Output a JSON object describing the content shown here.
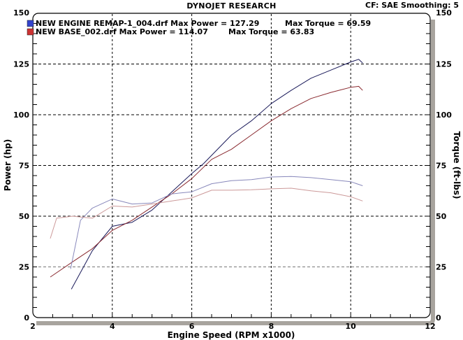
{
  "header": {
    "title": "DYNOJET RESEARCH",
    "cf_info": "CF: SAE  Smoothing: 5"
  },
  "legend": [
    {
      "label": "NEW ENGINE REMAP-1_004.drf Max Power = 127.29",
      "torque": "Max Torque = 69.59",
      "color": "#3344cc"
    },
    {
      "label": "NEW BASE_002.drf Max Power = 114.07",
      "torque": "Max Torque = 63.83",
      "color": "#cc3333"
    }
  ],
  "axes": {
    "x_title": "Engine Speed (RPM x1000)",
    "y_left_title": "Power (hp)",
    "y_right_title": "Torque (ft-lbs)",
    "x_ticks": [
      "2",
      "4",
      "6",
      "8",
      "10",
      "12"
    ],
    "y_ticks": [
      "0",
      "25",
      "50",
      "75",
      "100",
      "125",
      "150"
    ]
  },
  "colors": {
    "remap_power": "#1a1a5a",
    "base_power": "#8a2a30",
    "remap_torque": "#8888bb",
    "base_torque": "#cc9999",
    "frame_shadow": "#a8a49e"
  },
  "chart_data": {
    "type": "line",
    "title": "DYNOJET RESEARCH",
    "subtitle": "CF: SAE  Smoothing: 5",
    "xlabel": "Engine Speed (RPM x1000)",
    "ylabel": "Power (hp)",
    "ylabel_right": "Torque (ft-lbs)",
    "xlim": [
      2,
      12
    ],
    "ylim": [
      0,
      150
    ],
    "ylim_right": [
      0,
      150
    ],
    "grid": true,
    "legend_position": "top-left",
    "series": [
      {
        "name": "NEW ENGINE REMAP-1_004.drf Power",
        "axis": "left",
        "max": 127.29,
        "x": [
          2.97,
          3.5,
          4.0,
          4.5,
          5.0,
          5.5,
          6.0,
          6.3,
          6.8,
          7.0,
          7.5,
          8.0,
          8.5,
          9.0,
          9.5,
          10.0,
          10.2,
          10.3
        ],
        "y": [
          14,
          33,
          45,
          47,
          53,
          62,
          71,
          76,
          86,
          90,
          97,
          105.5,
          112,
          118,
          122,
          126,
          127.3,
          125.5
        ]
      },
      {
        "name": "NEW BASE_002.drf Power",
        "axis": "left",
        "max": 114.07,
        "x": [
          2.44,
          3.0,
          3.5,
          4.0,
          4.5,
          5.0,
          5.5,
          6.0,
          6.5,
          7.0,
          7.5,
          8.0,
          8.5,
          9.0,
          9.5,
          10.0,
          10.2,
          10.3
        ],
        "y": [
          20,
          27.5,
          34,
          43,
          48,
          54.5,
          61,
          68.5,
          78,
          83,
          90,
          97,
          103,
          108,
          111,
          113.5,
          114,
          112
        ]
      },
      {
        "name": "NEW ENGINE REMAP-1_004.drf Torque",
        "axis": "right",
        "max": 69.59,
        "x": [
          2.95,
          3.2,
          3.5,
          4.0,
          4.5,
          5.0,
          5.5,
          6.0,
          6.5,
          7.0,
          7.5,
          8.0,
          8.5,
          9.0,
          9.5,
          10.0,
          10.3
        ],
        "y": [
          24,
          48,
          54,
          58.5,
          56,
          56.5,
          61,
          62,
          66,
          67.5,
          68,
          69.3,
          69.6,
          69,
          68,
          67,
          65
        ]
      },
      {
        "name": "NEW BASE_002.drf Torque",
        "axis": "right",
        "max": 63.83,
        "x": [
          2.44,
          2.6,
          3.0,
          3.5,
          4.0,
          4.5,
          5.0,
          5.5,
          6.0,
          6.5,
          7.0,
          7.5,
          8.0,
          8.5,
          9.0,
          9.5,
          10.0,
          10.3
        ],
        "y": [
          39,
          49,
          50,
          49,
          55,
          54.5,
          56,
          57.5,
          59,
          62.8,
          62.8,
          63,
          63.5,
          63.8,
          62.5,
          61.5,
          59.6,
          57.5
        ]
      }
    ]
  }
}
